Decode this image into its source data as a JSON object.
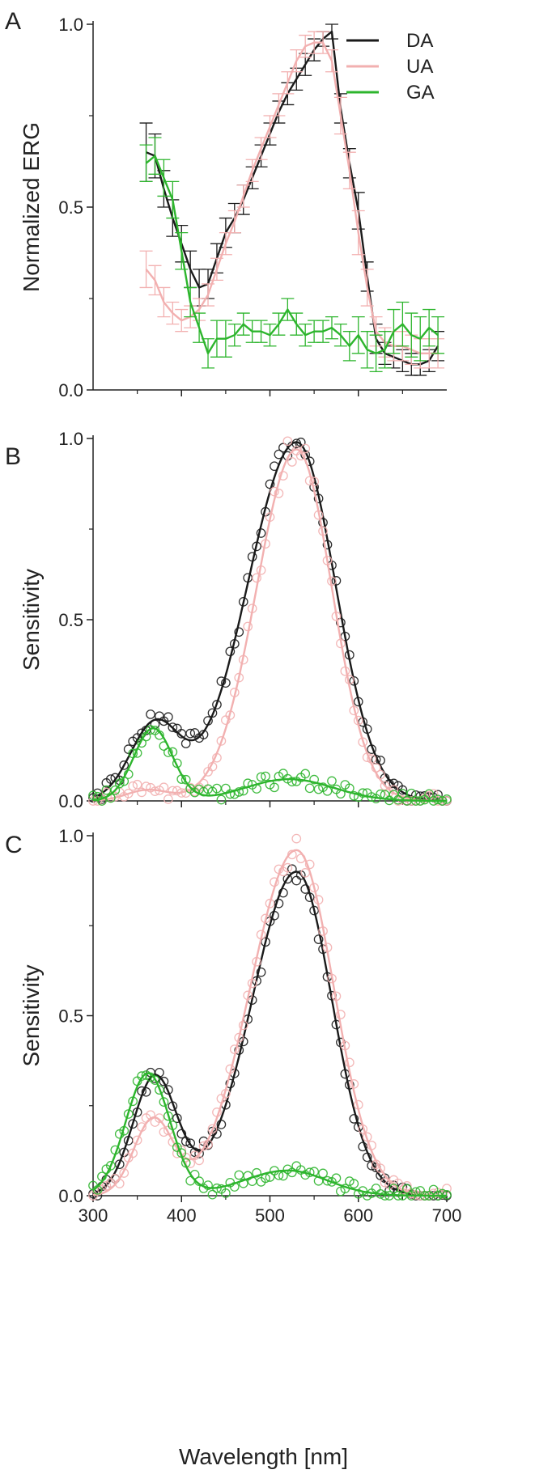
{
  "chart_data": [
    {
      "panel": "A",
      "type": "line",
      "ylabel": "Normalized ERG",
      "xlabel": "",
      "xlim": [
        300,
        700
      ],
      "ylim": [
        0,
        1
      ],
      "x_ticks": [
        400,
        500,
        600
      ],
      "y_ticks": [
        "0.0",
        "0.5",
        "1.0"
      ],
      "legend": {
        "position": "top-right",
        "entries": [
          "DA",
          "UA",
          "GA"
        ]
      },
      "series": [
        {
          "name": "DA",
          "color": "#1a1a1a",
          "x": [
            360,
            370,
            380,
            390,
            400,
            410,
            420,
            430,
            440,
            450,
            460,
            470,
            480,
            490,
            500,
            510,
            520,
            530,
            540,
            550,
            560,
            570,
            580,
            590,
            600,
            610,
            620,
            630,
            640,
            650,
            660,
            670,
            680,
            690
          ],
          "y": [
            0.65,
            0.64,
            0.55,
            0.47,
            0.4,
            0.33,
            0.28,
            0.29,
            0.36,
            0.43,
            0.47,
            0.52,
            0.58,
            0.64,
            0.7,
            0.76,
            0.81,
            0.85,
            0.89,
            0.93,
            0.96,
            0.98,
            0.77,
            0.62,
            0.49,
            0.31,
            0.14,
            0.1,
            0.09,
            0.08,
            0.07,
            0.07,
            0.08,
            0.12
          ],
          "err": [
            0.08,
            0.06,
            0.05,
            0.05,
            0.05,
            0.05,
            0.05,
            0.04,
            0.04,
            0.04,
            0.04,
            0.04,
            0.03,
            0.03,
            0.03,
            0.03,
            0.03,
            0.03,
            0.03,
            0.03,
            0.02,
            0.02,
            0.04,
            0.04,
            0.05,
            0.04,
            0.04,
            0.03,
            0.03,
            0.03,
            0.03,
            0.03,
            0.03,
            0.04
          ]
        },
        {
          "name": "UA",
          "color": "#f2b0b0",
          "x": [
            360,
            370,
            380,
            390,
            400,
            410,
            420,
            430,
            440,
            450,
            460,
            470,
            480,
            490,
            500,
            510,
            520,
            530,
            540,
            550,
            560,
            570,
            580,
            590,
            600,
            610,
            620,
            630,
            640,
            650,
            660,
            670,
            680,
            690
          ],
          "y": [
            0.33,
            0.3,
            0.24,
            0.21,
            0.19,
            0.2,
            0.22,
            0.26,
            0.33,
            0.4,
            0.46,
            0.53,
            0.6,
            0.66,
            0.72,
            0.78,
            0.84,
            0.9,
            0.94,
            0.95,
            0.95,
            0.9,
            0.75,
            0.6,
            0.43,
            0.28,
            0.16,
            0.13,
            0.12,
            0.12,
            0.11,
            0.1,
            0.1,
            0.1
          ],
          "err": [
            0.05,
            0.04,
            0.04,
            0.03,
            0.03,
            0.03,
            0.03,
            0.03,
            0.03,
            0.03,
            0.03,
            0.03,
            0.03,
            0.03,
            0.03,
            0.03,
            0.03,
            0.03,
            0.03,
            0.03,
            0.03,
            0.03,
            0.05,
            0.05,
            0.06,
            0.05,
            0.04,
            0.04,
            0.04,
            0.04,
            0.04,
            0.04,
            0.04,
            0.04
          ]
        },
        {
          "name": "GA",
          "color": "#2db52d",
          "x": [
            360,
            370,
            380,
            390,
            400,
            410,
            420,
            430,
            440,
            450,
            460,
            470,
            480,
            490,
            500,
            510,
            520,
            530,
            540,
            550,
            560,
            570,
            580,
            590,
            600,
            610,
            620,
            630,
            640,
            650,
            660,
            670,
            680,
            690
          ],
          "y": [
            0.62,
            0.64,
            0.58,
            0.52,
            0.38,
            0.24,
            0.17,
            0.1,
            0.14,
            0.14,
            0.15,
            0.18,
            0.16,
            0.16,
            0.15,
            0.18,
            0.22,
            0.18,
            0.15,
            0.16,
            0.16,
            0.17,
            0.15,
            0.12,
            0.15,
            0.11,
            0.1,
            0.11,
            0.16,
            0.18,
            0.15,
            0.14,
            0.17,
            0.15
          ],
          "err": [
            0.05,
            0.05,
            0.05,
            0.05,
            0.05,
            0.04,
            0.04,
            0.04,
            0.05,
            0.05,
            0.03,
            0.03,
            0.03,
            0.03,
            0.03,
            0.03,
            0.03,
            0.03,
            0.03,
            0.03,
            0.03,
            0.03,
            0.03,
            0.04,
            0.05,
            0.05,
            0.05,
            0.05,
            0.06,
            0.06,
            0.06,
            0.06,
            0.05,
            0.05
          ]
        }
      ]
    },
    {
      "panel": "B",
      "type": "scatter",
      "ylabel": "Sensitivity",
      "xlabel": "",
      "xlim": [
        300,
        700
      ],
      "ylim": [
        0,
        1
      ],
      "x_ticks": [
        400,
        500,
        600
      ],
      "y_ticks": [
        "0.0",
        "0.5",
        "1.0"
      ],
      "series": [
        {
          "name": "DA",
          "color": "#1a1a1a",
          "fit": {
            "uv": [
              0.21,
              370,
              28
            ],
            "green": [
              0.99,
              530,
              44
            ],
            "green_left_width": 55
          }
        },
        {
          "name": "UA",
          "color": "#f2b0b0",
          "fit": {
            "uv": [
              0.03,
              362,
              24
            ],
            "green": [
              0.97,
              530,
              40
            ],
            "green_left_width": 45
          }
        },
        {
          "name": "GA",
          "color": "#2db52d",
          "fit": {
            "uv": [
              0.2,
              368,
              22
            ],
            "green": [
              0.06,
              522,
              50
            ],
            "green_left_width": 50
          }
        }
      ]
    },
    {
      "panel": "C",
      "type": "scatter",
      "ylabel": "Sensitivity",
      "xlabel": "Wavelength [nm]",
      "xlim": [
        300,
        700
      ],
      "ylim": [
        0,
        1
      ],
      "x_ticks": [
        300,
        400,
        500,
        600,
        700
      ],
      "y_ticks": [
        "0.0",
        "0.5",
        "1.0"
      ],
      "series": [
        {
          "name": "DA",
          "color": "#1a1a1a",
          "fit": {
            "uv": [
              0.33,
              370,
              25
            ],
            "green": [
              0.9,
              530,
              40
            ],
            "green_left_width": 50
          }
        },
        {
          "name": "UA",
          "color": "#f2b0b0",
          "fit": {
            "uv": [
              0.21,
              368,
              22
            ],
            "green": [
              0.96,
              530,
              42
            ],
            "green_left_width": 52
          }
        },
        {
          "name": "GA",
          "color": "#2db52d",
          "fit": {
            "uv": [
              0.34,
              362,
              25
            ],
            "green": [
              0.07,
              520,
              45
            ],
            "green_left_width": 50
          }
        }
      ]
    }
  ]
}
